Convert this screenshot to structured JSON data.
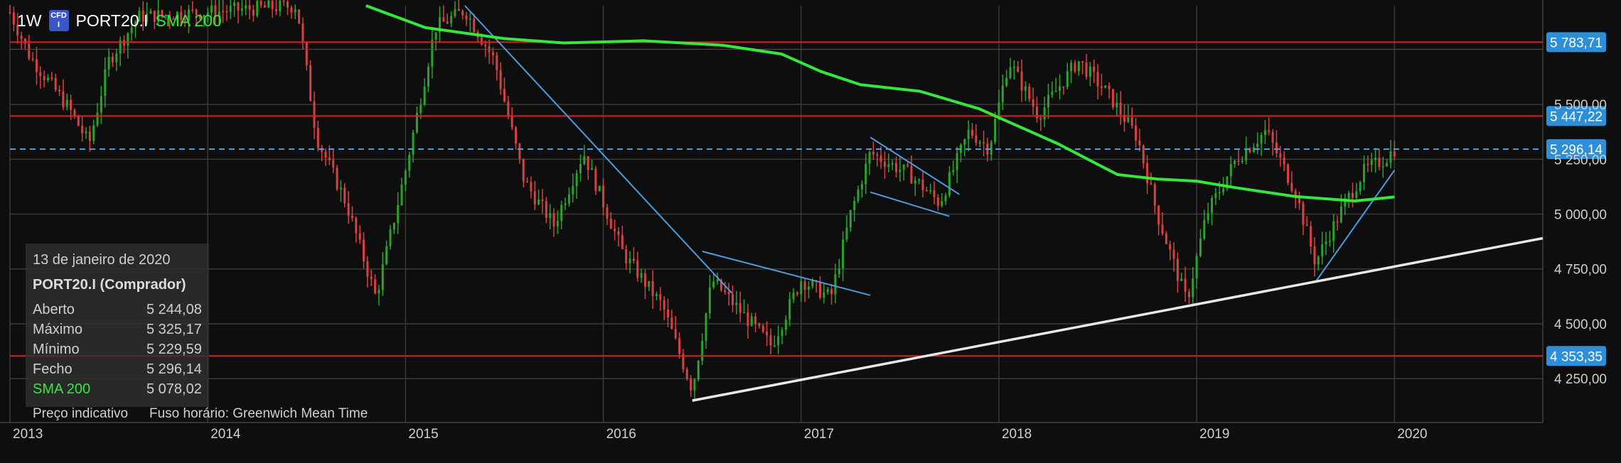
{
  "header": {
    "interval": "1W",
    "cfd_badge": "CFD",
    "symbol": "PORT20.I",
    "indicator": "SMA 200"
  },
  "colors": {
    "up": "#29a329",
    "down": "#d94141",
    "sma": "#33e83a",
    "resistance": "#e02020",
    "dashed": "#3da1f0",
    "trend": "#4a9de0",
    "support": "#e8e8e8",
    "tag": "#2f8fd6"
  },
  "info_panel": {
    "date": "13 de janeiro de 2020",
    "symbol": "PORT20.I (Comprador)",
    "rows": [
      {
        "label": "Aberto",
        "value": "5 244,08"
      },
      {
        "label": "Máximo",
        "value": "5 325,17"
      },
      {
        "label": "Mínimo",
        "value": "5 229,59"
      },
      {
        "label": "Fecho",
        "value": "5 296,14"
      },
      {
        "label": "SMA 200",
        "value": "5 078,02"
      }
    ],
    "footer_left": "Preço indicativo",
    "footer_right": "Fuso horário: Greenwich Mean Time"
  },
  "chart_data": {
    "type": "candlestick",
    "interval": "weekly",
    "x_tick_labels": [
      "2013",
      "2014",
      "2015",
      "2016",
      "2017",
      "2018",
      "2019",
      "2020"
    ],
    "y_tick_labels": [
      "4 250,00",
      "4 500,00",
      "4 750,00",
      "5 000,00",
      "5 250,00",
      "5 500,00"
    ],
    "y_ticks": [
      4250,
      4500,
      4750,
      5000,
      5250,
      5500
    ],
    "ylim": [
      4050,
      5950
    ],
    "xlim": [
      2013.0,
      2020.75
    ],
    "horizontal_levels": [
      {
        "value": 5783.71,
        "label": "5 783,71",
        "style": "solid-red"
      },
      {
        "value": 5447.22,
        "label": "5 447,22",
        "style": "solid-red"
      },
      {
        "value": 5296.14,
        "label": "5 296,14",
        "style": "dashed-blue"
      },
      {
        "value": 4353.35,
        "label": "4 353,35",
        "style": "solid-red"
      }
    ],
    "sma_200": [
      [
        2014.8,
        5950
      ],
      [
        2015.1,
        5850
      ],
      [
        2015.5,
        5800
      ],
      [
        2015.8,
        5780
      ],
      [
        2016.2,
        5790
      ],
      [
        2016.6,
        5770
      ],
      [
        2016.9,
        5730
      ],
      [
        2017.1,
        5650
      ],
      [
        2017.3,
        5590
      ],
      [
        2017.6,
        5560
      ],
      [
        2017.9,
        5480
      ],
      [
        2018.1,
        5400
      ],
      [
        2018.3,
        5320
      ],
      [
        2018.6,
        5180
      ],
      [
        2018.8,
        5160
      ],
      [
        2019.0,
        5150
      ],
      [
        2019.2,
        5120
      ],
      [
        2019.5,
        5080
      ],
      [
        2019.8,
        5060
      ],
      [
        2020.0,
        5078
      ]
    ],
    "trend_lines": [
      {
        "name": "downtrend-2015",
        "color": "trend",
        "points": [
          [
            2015.3,
            5950
          ],
          [
            2016.65,
            4640
          ]
        ]
      },
      {
        "name": "flag-upper",
        "color": "trend",
        "points": [
          [
            2016.5,
            4830
          ],
          [
            2017.35,
            4630
          ]
        ]
      },
      {
        "name": "wedge-top",
        "color": "trend",
        "points": [
          [
            2017.35,
            5350
          ],
          [
            2017.8,
            5090
          ]
        ]
      },
      {
        "name": "wedge-bottom",
        "color": "trend",
        "points": [
          [
            2017.35,
            5100
          ],
          [
            2017.75,
            4990
          ]
        ]
      },
      {
        "name": "uptrend-2019",
        "color": "trend",
        "points": [
          [
            2019.6,
            4690
          ],
          [
            2020.0,
            5200
          ]
        ]
      },
      {
        "name": "long-support",
        "color": "support",
        "points": [
          [
            2016.45,
            4150
          ],
          [
            2020.75,
            4890
          ]
        ]
      }
    ],
    "candle_path": [
      [
        2013.0,
        5920
      ],
      [
        2013.1,
        5720
      ],
      [
        2013.3,
        5480
      ],
      [
        2013.4,
        5320
      ],
      [
        2013.5,
        5700
      ],
      [
        2013.65,
        5900
      ],
      [
        2014.45,
        5950
      ],
      [
        2014.55,
        5350
      ],
      [
        2014.7,
        5050
      ],
      [
        2014.85,
        4620
      ],
      [
        2015.0,
        5200
      ],
      [
        2015.15,
        5850
      ],
      [
        2015.3,
        5930
      ],
      [
        2015.45,
        5700
      ],
      [
        2015.6,
        5150
      ],
      [
        2015.75,
        4950
      ],
      [
        2015.9,
        5280
      ],
      [
        2016.1,
        4820
      ],
      [
        2016.3,
        4580
      ],
      [
        2016.45,
        4200
      ],
      [
        2016.55,
        4700
      ],
      [
        2016.7,
        4550
      ],
      [
        2016.85,
        4400
      ],
      [
        2017.0,
        4700
      ],
      [
        2017.15,
        4620
      ],
      [
        2017.25,
        5000
      ],
      [
        2017.35,
        5280
      ],
      [
        2017.55,
        5180
      ],
      [
        2017.7,
        5050
      ],
      [
        2017.85,
        5380
      ],
      [
        2017.95,
        5300
      ],
      [
        2018.05,
        5700
      ],
      [
        2018.2,
        5450
      ],
      [
        2018.4,
        5700
      ],
      [
        2018.55,
        5550
      ],
      [
        2018.7,
        5350
      ],
      [
        2018.8,
        5000
      ],
      [
        2018.95,
        4600
      ],
      [
        2019.05,
        5000
      ],
      [
        2019.2,
        5250
      ],
      [
        2019.35,
        5380
      ],
      [
        2019.5,
        5100
      ],
      [
        2019.6,
        4780
      ],
      [
        2019.75,
        5050
      ],
      [
        2019.85,
        5200
      ],
      [
        2019.95,
        5250
      ],
      [
        2020.0,
        5296
      ]
    ]
  }
}
